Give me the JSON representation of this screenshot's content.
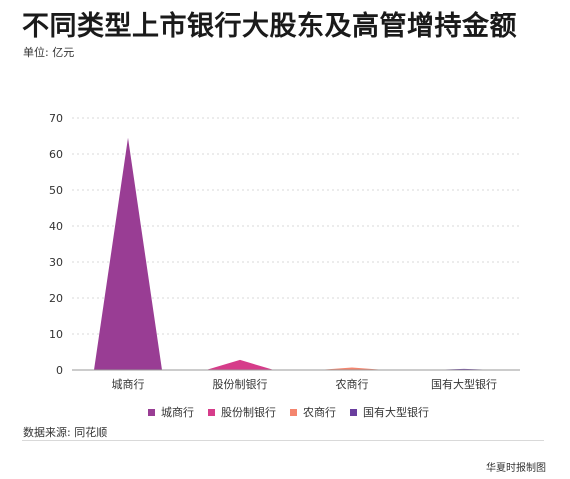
{
  "title": "不同类型上市银行大股东及高管增持金额",
  "unit_label": "单位: 亿元",
  "source": "数据来源: 同花顺",
  "credit": "华夏时报制图",
  "chart_data": {
    "type": "area",
    "categories": [
      "城商行",
      "股份制银行",
      "农商行",
      "国有大型银行"
    ],
    "series": [
      {
        "name": "城商行",
        "color": "#993d94",
        "values": [
          64.5,
          0,
          0,
          0
        ]
      },
      {
        "name": "股份制银行",
        "color": "#d63c8a",
        "values": [
          0,
          2.8,
          0,
          0
        ]
      },
      {
        "name": "农商行",
        "color": "#f4856e",
        "values": [
          0,
          0,
          0.7,
          0
        ]
      },
      {
        "name": "国有大型银行",
        "color": "#6a3e9e",
        "values": [
          0,
          0,
          0,
          0.3
        ]
      }
    ],
    "ylim": [
      0,
      70
    ],
    "yticks": [
      0,
      10,
      20,
      30,
      40,
      50,
      60,
      70
    ],
    "grid": true,
    "legend_position": "bottom"
  }
}
